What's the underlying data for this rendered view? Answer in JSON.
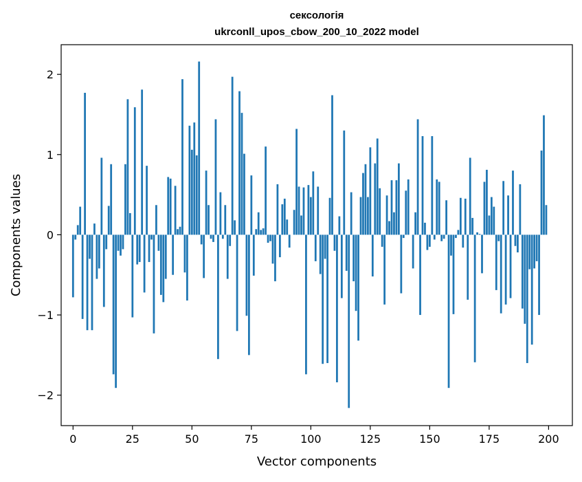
{
  "chart_data": {
    "type": "bar",
    "title": "сексологія",
    "subtitle": "ukrconll_upos_cbow_200_10_2022 model",
    "xlabel": "Vector components",
    "ylabel": "Components values",
    "xlim": [
      -5,
      210
    ],
    "ylim": [
      -2.38,
      2.37
    ],
    "xticks": [
      0,
      25,
      50,
      75,
      100,
      125,
      150,
      175,
      200
    ],
    "xtick_labels": [
      "0",
      "25",
      "50",
      "75",
      "100",
      "125",
      "150",
      "175",
      "200"
    ],
    "yticks": [
      -2,
      -1,
      0,
      1,
      2
    ],
    "ytick_labels": [
      "−2",
      "−1",
      "0",
      "1",
      "2"
    ],
    "grid": false,
    "bar_color": "#1f77b4",
    "x": [
      0,
      1,
      2,
      3,
      4,
      5,
      6,
      7,
      8,
      9,
      10,
      11,
      12,
      13,
      14,
      15,
      16,
      17,
      18,
      19,
      20,
      21,
      22,
      23,
      24,
      25,
      26,
      27,
      28,
      29,
      30,
      31,
      32,
      33,
      34,
      35,
      36,
      37,
      38,
      39,
      40,
      41,
      42,
      43,
      44,
      45,
      46,
      47,
      48,
      49,
      50,
      51,
      52,
      53,
      54,
      55,
      56,
      57,
      58,
      59,
      60,
      61,
      62,
      63,
      64,
      65,
      66,
      67,
      68,
      69,
      70,
      71,
      72,
      73,
      74,
      75,
      76,
      77,
      78,
      79,
      80,
      81,
      82,
      83,
      84,
      85,
      86,
      87,
      88,
      89,
      90,
      91,
      92,
      93,
      94,
      95,
      96,
      97,
      98,
      99,
      100,
      101,
      102,
      103,
      104,
      105,
      106,
      107,
      108,
      109,
      110,
      111,
      112,
      113,
      114,
      115,
      116,
      117,
      118,
      119,
      120,
      121,
      122,
      123,
      124,
      125,
      126,
      127,
      128,
      129,
      130,
      131,
      132,
      133,
      134,
      135,
      136,
      137,
      138,
      139,
      140,
      141,
      142,
      143,
      144,
      145,
      146,
      147,
      148,
      149,
      150,
      151,
      152,
      153,
      154,
      155,
      156,
      157,
      158,
      159,
      160,
      161,
      162,
      163,
      164,
      165,
      166,
      167,
      168,
      169,
      170,
      171,
      172,
      173,
      174,
      175,
      176,
      177,
      178,
      179,
      180,
      181,
      182,
      183,
      184,
      185,
      186,
      187,
      188,
      189,
      190,
      191,
      192,
      193,
      194,
      195,
      196,
      197,
      198,
      199
    ],
    "values": [
      -0.78,
      -0.06,
      0.12,
      0.35,
      -1.05,
      1.77,
      -1.19,
      -0.3,
      -1.19,
      0.14,
      -0.55,
      -0.42,
      0.96,
      -0.9,
      -0.18,
      0.36,
      0.88,
      -1.74,
      -1.91,
      -0.2,
      -0.26,
      -0.18,
      0.88,
      1.69,
      0.27,
      -1.03,
      1.59,
      -0.37,
      -0.34,
      1.81,
      -0.72,
      0.86,
      -0.34,
      -0.06,
      -1.23,
      0.37,
      -0.2,
      -0.75,
      -0.84,
      -0.55,
      0.72,
      0.7,
      -0.5,
      0.61,
      0.07,
      0.1,
      1.94,
      -0.47,
      -0.82,
      1.36,
      1.06,
      1.4,
      0.99,
      2.16,
      -0.12,
      -0.54,
      0.8,
      0.37,
      -0.05,
      -0.09,
      1.44,
      -1.55,
      0.53,
      -0.05,
      0.37,
      -0.55,
      -0.14,
      1.97,
      0.18,
      -1.2,
      1.79,
      1.52,
      1.01,
      -1.01,
      -1.5,
      0.74,
      -0.51,
      0.07,
      0.28,
      0.06,
      0.08,
      1.1,
      -0.1,
      -0.08,
      -0.36,
      -0.58,
      0.63,
      -0.28,
      0.38,
      0.45,
      0.19,
      -0.16,
      0.0,
      0.31,
      1.32,
      0.6,
      0.24,
      0.59,
      -1.74,
      0.62,
      0.47,
      0.79,
      -0.33,
      0.6,
      -0.49,
      -1.61,
      -0.3,
      -1.6,
      0.46,
      1.74,
      -0.2,
      -1.84,
      0.23,
      -0.79,
      1.3,
      -0.45,
      -2.16,
      0.53,
      -0.58,
      -0.95,
      -1.32,
      0.47,
      0.77,
      0.88,
      0.47,
      1.09,
      -0.52,
      0.89,
      1.2,
      0.58,
      -0.15,
      -0.87,
      0.49,
      0.17,
      0.68,
      0.28,
      0.68,
      0.89,
      -0.73,
      -0.04,
      0.55,
      0.69,
      0.0,
      -0.42,
      0.28,
      1.44,
      -1.0,
      1.23,
      0.15,
      -0.19,
      -0.15,
      1.23,
      -0.06,
      0.69,
      0.66,
      -0.08,
      -0.05,
      0.43,
      -1.91,
      -0.26,
      -0.99,
      -0.04,
      0.06,
      0.46,
      -0.16,
      0.45,
      -0.81,
      0.96,
      0.21,
      -1.59,
      0.03,
      0.01,
      -0.48,
      0.66,
      0.81,
      0.24,
      0.47,
      0.35,
      -0.69,
      -0.08,
      -0.98,
      0.67,
      -0.87,
      0.49,
      -0.79,
      0.8,
      -0.14,
      -0.22,
      0.63,
      -0.92,
      -1.11,
      -1.6,
      -0.43,
      -1.37,
      -0.42,
      -0.33,
      -1.0,
      1.05,
      1.49,
      0.37
    ]
  }
}
